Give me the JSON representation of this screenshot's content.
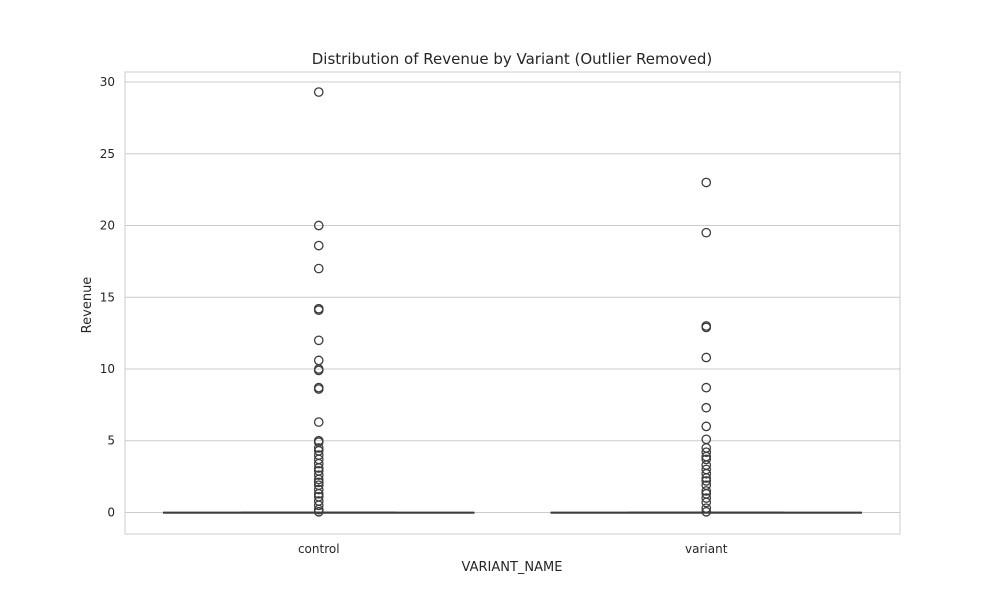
{
  "chart_data": {
    "type": "boxplot",
    "title": "Distribution of Revenue by Variant (Outlier Removed)",
    "xlabel": "VARIANT_NAME",
    "ylabel": "Revenue",
    "ylim": [
      -1.5,
      30.7
    ],
    "yticks": [
      0,
      5,
      10,
      15,
      20,
      25,
      30
    ],
    "grid": true,
    "categories": [
      "control",
      "variant"
    ],
    "box_color": "#ffffff",
    "line_color": "#3d3d3d",
    "grid_color": "#cccccc",
    "series": [
      {
        "category": "control",
        "q1": 0,
        "median": 0,
        "q3": 0,
        "whisker_low": 0,
        "whisker_high": 0,
        "outliers": [
          29.3,
          20.0,
          18.6,
          17.0,
          14.2,
          14.1,
          12.0,
          10.6,
          10.0,
          9.9,
          8.7,
          8.6,
          6.3,
          5.0,
          4.9,
          4.5,
          4.3,
          4.0,
          3.7,
          3.4,
          3.1,
          2.9,
          2.6,
          2.3,
          2.1,
          1.9,
          1.6,
          1.3,
          1.1,
          0.8,
          0.5,
          0.2,
          0.05
        ]
      },
      {
        "category": "variant",
        "q1": 0,
        "median": 0,
        "q3": 0,
        "whisker_low": 0,
        "whisker_high": 0,
        "outliers": [
          23.0,
          19.5,
          13.0,
          12.9,
          10.8,
          8.7,
          7.3,
          6.0,
          5.1,
          4.5,
          4.2,
          3.9,
          3.7,
          3.3,
          3.0,
          2.7,
          2.4,
          2.2,
          1.9,
          1.5,
          1.3,
          1.0,
          0.7,
          0.3,
          0.05
        ]
      }
    ]
  }
}
